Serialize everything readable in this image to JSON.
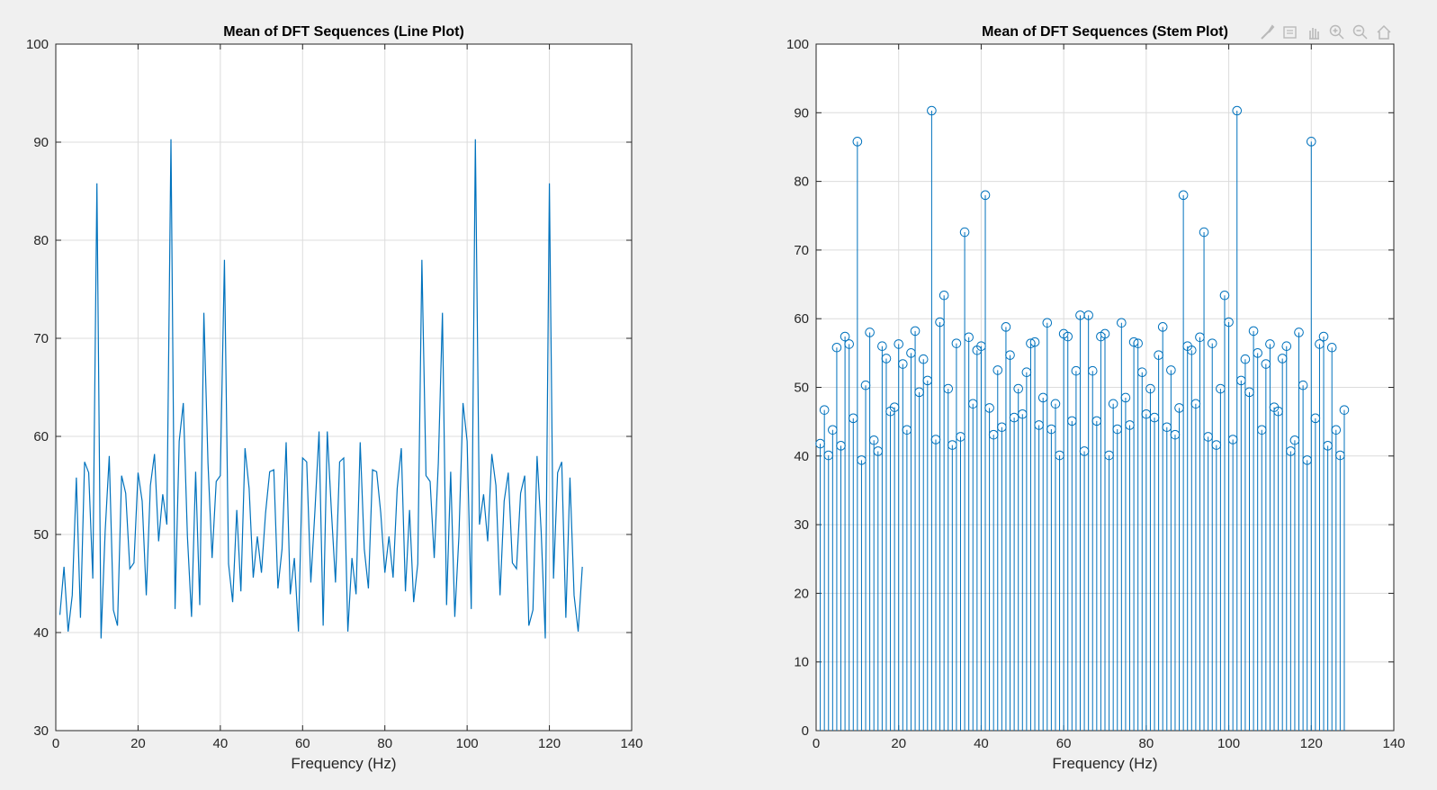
{
  "figure": {
    "background": "#f0f0f0",
    "axes_background": "#ffffff",
    "line_color": "#0072bd",
    "grid_color": "#dcdcdc",
    "toolbar": [
      "brush-icon",
      "datatip-icon",
      "pan-icon",
      "zoom-in-icon",
      "zoom-out-icon",
      "home-icon"
    ]
  },
  "chart_data": [
    {
      "type": "line",
      "title": "Mean of DFT Sequences (Line Plot)",
      "xlabel": "Frequency (Hz)",
      "ylabel": "",
      "xlim": [
        0,
        140
      ],
      "ylim": [
        30,
        100
      ],
      "xticks": [
        0,
        20,
        40,
        60,
        80,
        100,
        120,
        140
      ],
      "yticks": [
        30,
        40,
        50,
        60,
        70,
        80,
        90,
        100
      ],
      "grid": true,
      "series": [
        {
          "x": [
            1,
            2,
            3,
            4,
            5,
            6,
            7,
            8,
            9,
            10,
            11,
            12,
            13,
            14,
            15,
            16,
            17,
            18,
            19,
            20,
            21,
            22,
            23,
            24,
            25,
            26,
            27,
            28,
            29,
            30,
            31,
            32,
            33,
            34,
            35,
            36,
            37,
            38,
            39,
            40,
            41,
            42,
            43,
            44,
            45,
            46,
            47,
            48,
            49,
            50,
            51,
            52,
            53,
            54,
            55,
            56,
            57,
            58,
            59,
            60,
            61,
            62,
            63,
            64,
            65,
            66,
            67,
            68,
            69,
            70,
            71,
            72,
            73,
            74,
            75,
            76,
            77,
            78,
            79,
            80,
            81,
            82,
            83,
            84,
            85,
            86,
            87,
            88,
            89,
            90,
            91,
            92,
            93,
            94,
            95,
            96,
            97,
            98,
            99,
            100,
            101,
            102,
            103,
            104,
            105,
            106,
            107,
            108,
            109,
            110,
            111,
            112,
            113,
            114,
            115,
            116,
            117,
            118,
            119,
            120,
            121,
            122,
            123,
            124,
            125,
            126,
            127,
            128
          ],
          "values": [
            41.8,
            46.7,
            40.1,
            43.8,
            55.8,
            41.5,
            57.4,
            56.3,
            45.5,
            85.8,
            39.4,
            50.3,
            58.0,
            42.3,
            40.7,
            56.0,
            54.2,
            46.5,
            47.1,
            56.3,
            53.4,
            43.8,
            55.0,
            58.2,
            49.3,
            54.1,
            51.0,
            90.3,
            42.4,
            59.5,
            63.4,
            49.8,
            41.6,
            56.4,
            42.8,
            72.6,
            57.3,
            47.6,
            55.4,
            56.0,
            78.0,
            47.0,
            43.1,
            52.5,
            44.2,
            58.8,
            54.7,
            45.6,
            49.8,
            46.1,
            52.2,
            56.4,
            56.6,
            44.5,
            48.5,
            59.4,
            43.9,
            47.6,
            40.1,
            57.8,
            57.4,
            45.1,
            52.4,
            60.5,
            40.7,
            60.5,
            52.4,
            45.1,
            57.4,
            57.8,
            40.1,
            47.6,
            43.9,
            59.4,
            48.5,
            44.5,
            56.6,
            56.4,
            52.2,
            46.1,
            49.8,
            45.6,
            54.7,
            58.8,
            44.2,
            52.5,
            43.1,
            47.0,
            78.0,
            56.0,
            55.4,
            47.6,
            57.3,
            72.6,
            42.8,
            56.4,
            41.6,
            49.8,
            63.4,
            59.5,
            42.4,
            90.3,
            51.0,
            54.1,
            49.3,
            58.2,
            55.0,
            43.8,
            53.4,
            56.3,
            47.1,
            46.5,
            54.2,
            56.0,
            40.7,
            42.3,
            58.0,
            50.3,
            39.4,
            85.8,
            45.5,
            56.3,
            57.4,
            41.5,
            55.8,
            43.8,
            40.1,
            46.7
          ]
        }
      ]
    },
    {
      "type": "stem",
      "title": "Mean of DFT Sequences (Stem Plot)",
      "xlabel": "Frequency (Hz)",
      "ylabel": "",
      "xlim": [
        0,
        140
      ],
      "ylim": [
        0,
        100
      ],
      "xticks": [
        0,
        20,
        40,
        60,
        80,
        100,
        120,
        140
      ],
      "yticks": [
        0,
        10,
        20,
        30,
        40,
        50,
        60,
        70,
        80,
        90,
        100
      ],
      "grid": true,
      "series": [
        {
          "x": [
            1,
            2,
            3,
            4,
            5,
            6,
            7,
            8,
            9,
            10,
            11,
            12,
            13,
            14,
            15,
            16,
            17,
            18,
            19,
            20,
            21,
            22,
            23,
            24,
            25,
            26,
            27,
            28,
            29,
            30,
            31,
            32,
            33,
            34,
            35,
            36,
            37,
            38,
            39,
            40,
            41,
            42,
            43,
            44,
            45,
            46,
            47,
            48,
            49,
            50,
            51,
            52,
            53,
            54,
            55,
            56,
            57,
            58,
            59,
            60,
            61,
            62,
            63,
            64,
            65,
            66,
            67,
            68,
            69,
            70,
            71,
            72,
            73,
            74,
            75,
            76,
            77,
            78,
            79,
            80,
            81,
            82,
            83,
            84,
            85,
            86,
            87,
            88,
            89,
            90,
            91,
            92,
            93,
            94,
            95,
            96,
            97,
            98,
            99,
            100,
            101,
            102,
            103,
            104,
            105,
            106,
            107,
            108,
            109,
            110,
            111,
            112,
            113,
            114,
            115,
            116,
            117,
            118,
            119,
            120,
            121,
            122,
            123,
            124,
            125,
            126,
            127,
            128
          ],
          "values": [
            41.8,
            46.7,
            40.1,
            43.8,
            55.8,
            41.5,
            57.4,
            56.3,
            45.5,
            85.8,
            39.4,
            50.3,
            58.0,
            42.3,
            40.7,
            56.0,
            54.2,
            46.5,
            47.1,
            56.3,
            53.4,
            43.8,
            55.0,
            58.2,
            49.3,
            54.1,
            51.0,
            90.3,
            42.4,
            59.5,
            63.4,
            49.8,
            41.6,
            56.4,
            42.8,
            72.6,
            57.3,
            47.6,
            55.4,
            56.0,
            78.0,
            47.0,
            43.1,
            52.5,
            44.2,
            58.8,
            54.7,
            45.6,
            49.8,
            46.1,
            52.2,
            56.4,
            56.6,
            44.5,
            48.5,
            59.4,
            43.9,
            47.6,
            40.1,
            57.8,
            57.4,
            45.1,
            52.4,
            60.5,
            40.7,
            60.5,
            52.4,
            45.1,
            57.4,
            57.8,
            40.1,
            47.6,
            43.9,
            59.4,
            48.5,
            44.5,
            56.6,
            56.4,
            52.2,
            46.1,
            49.8,
            45.6,
            54.7,
            58.8,
            44.2,
            52.5,
            43.1,
            47.0,
            78.0,
            56.0,
            55.4,
            47.6,
            57.3,
            72.6,
            42.8,
            56.4,
            41.6,
            49.8,
            63.4,
            59.5,
            42.4,
            90.3,
            51.0,
            54.1,
            49.3,
            58.2,
            55.0,
            43.8,
            53.4,
            56.3,
            47.1,
            46.5,
            54.2,
            56.0,
            40.7,
            42.3,
            58.0,
            50.3,
            39.4,
            85.8,
            45.5,
            56.3,
            57.4,
            41.5,
            55.8,
            43.8,
            40.1,
            46.7
          ]
        }
      ]
    }
  ]
}
